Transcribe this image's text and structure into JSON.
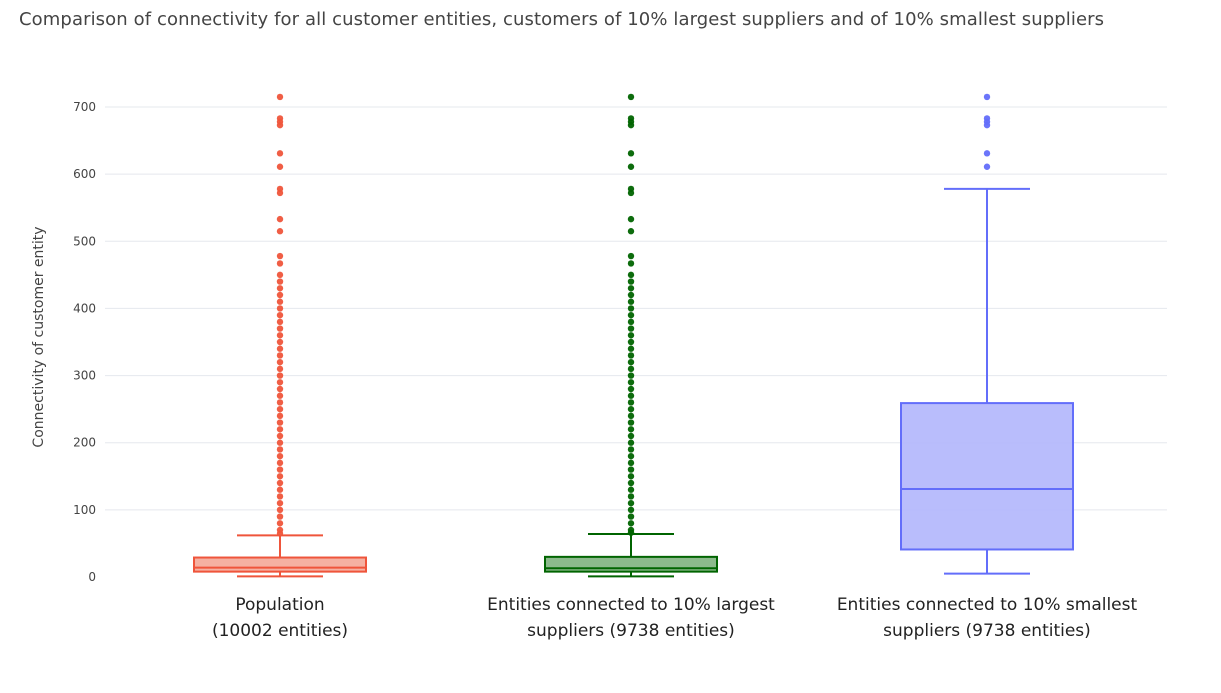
{
  "chart_data": {
    "type": "box",
    "title": "Comparison of connectivity for all customer entities, customers of 10% largest suppliers and of 10% smallest suppliers",
    "ylabel": "Connectivity of customer entity",
    "ylim": [
      0,
      715
    ],
    "yticks": [
      0,
      100,
      200,
      300,
      400,
      500,
      600,
      700
    ],
    "grid": true,
    "categories": [
      [
        "Population",
        "(10002 entities)"
      ],
      [
        "Entities connected to 10% largest",
        "suppliers (9738 entities)"
      ],
      [
        "Entities connected to 10% smallest",
        "suppliers (9738 entities)"
      ]
    ],
    "series": [
      {
        "color": "#ef553b",
        "fill": "#f4a898",
        "stats": {
          "min": 1,
          "q1": 8,
          "median": 14,
          "q3": 29,
          "max": 62
        },
        "outliers": [
          715,
          683,
          678,
          673,
          631,
          611,
          578,
          572,
          533,
          515,
          478,
          467,
          450,
          440,
          430,
          420,
          410,
          400,
          390,
          380,
          370,
          360,
          350,
          340,
          330,
          320,
          310,
          300,
          290,
          280,
          270,
          260,
          250,
          240,
          230,
          220,
          210,
          200,
          190,
          180,
          170,
          160,
          150,
          140,
          130,
          120,
          110,
          100,
          90,
          80,
          70,
          65
        ]
      },
      {
        "color": "#006400",
        "fill": "#80b280",
        "stats": {
          "min": 1,
          "q1": 8,
          "median": 13,
          "q3": 30,
          "max": 64
        },
        "outliers": [
          715,
          683,
          678,
          673,
          631,
          611,
          578,
          572,
          533,
          515,
          478,
          467,
          450,
          440,
          430,
          420,
          410,
          400,
          390,
          380,
          370,
          360,
          350,
          340,
          330,
          320,
          310,
          300,
          290,
          280,
          270,
          260,
          250,
          240,
          230,
          220,
          210,
          200,
          190,
          180,
          170,
          160,
          150,
          140,
          130,
          120,
          110,
          100,
          90,
          80,
          70,
          66
        ]
      },
      {
        "color": "#636efa",
        "fill": "#b1b6fc",
        "stats": {
          "min": 5,
          "q1": 41,
          "median": 131,
          "q3": 259,
          "max": 578
        },
        "outliers": [
          715,
          683,
          678,
          673,
          631,
          611
        ]
      }
    ]
  }
}
